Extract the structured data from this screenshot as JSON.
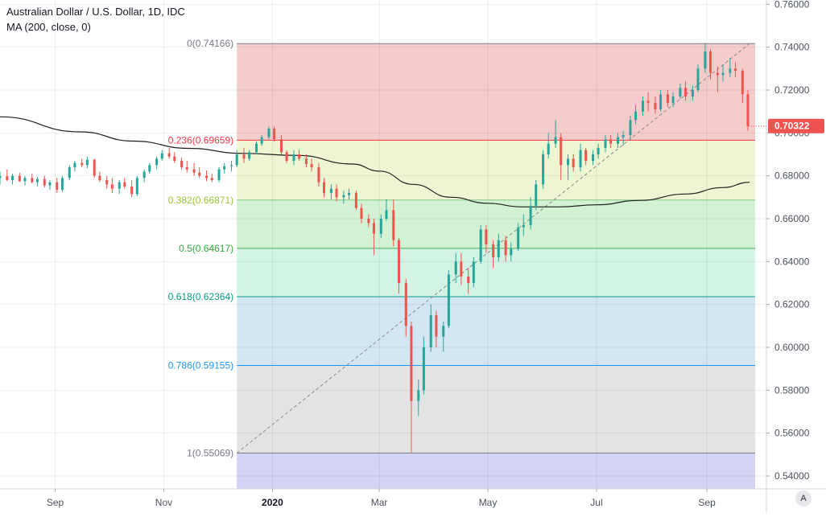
{
  "header": {
    "title": "Australian Dollar / U.S. Dollar, 1D, IDC",
    "indicator": "MA (200, close, 0)"
  },
  "auto_button": "A",
  "chart_data": {
    "type": "candlestick",
    "symbol": "AUDUSD",
    "ylim": [
      0.534,
      0.762
    ],
    "y_ticks": [
      "0.76000",
      "0.74000",
      "0.72000",
      "0.70000",
      "0.68000",
      "0.66000",
      "0.64000",
      "0.62000",
      "0.60000",
      "0.58000",
      "0.56000",
      "0.54000"
    ],
    "x_ticks": [
      "Sep",
      "Nov",
      "2020",
      "Mar",
      "May",
      "Jul",
      "Sep"
    ],
    "x_tick_months": [
      "2019-09-01",
      "2019-11-01",
      "2020-01-01",
      "2020-03-01",
      "2020-05-01",
      "2020-07-01",
      "2020-09-01"
    ],
    "x_range": [
      "2019-08-01",
      "2020-09-29"
    ],
    "last_price": "0.70322",
    "last_price_value": 0.70322,
    "up_color": "#26a69a",
    "down_color": "#ef5350",
    "fib_start_date": "2019-12-12",
    "fib_end_date": "2020-09-25",
    "fib_levels": [
      {
        "ratio": 0,
        "label": "0(0.74166)",
        "price": 0.74166,
        "line": "#787b86",
        "text": "#787b86",
        "fill": "#f5cccc"
      },
      {
        "ratio": 0.236,
        "label": "0.236(0.69659)",
        "price": 0.69659,
        "line": "#f23645",
        "text": "#f23645",
        "fill": "#eef5d2"
      },
      {
        "ratio": 0.382,
        "label": "0.382(0.66871)",
        "price": 0.66871,
        "line": "#81c784",
        "text": "#9bc235",
        "fill": "#d3f2d3"
      },
      {
        "ratio": 0.5,
        "label": "0.5(0.64617)",
        "price": 0.64617,
        "line": "#4caf50",
        "text": "#32a83c",
        "fill": "#d3f3e5"
      },
      {
        "ratio": 0.618,
        "label": "0.618(0.62364)",
        "price": 0.62364,
        "line": "#089981",
        "text": "#089981",
        "fill": "#d3e6f3"
      },
      {
        "ratio": 0.786,
        "label": "0.786(0.59155)",
        "price": 0.59155,
        "line": "#2196f3",
        "text": "#2196f3",
        "fill": "#e3e3e3"
      },
      {
        "ratio": 1,
        "label": "1(0.55069)",
        "price": 0.55069,
        "line": "#787b86",
        "text": "#787b86",
        "fill": "#d3d3f3"
      }
    ],
    "trend_line": {
      "from": [
        "2019-12-12",
        0.55069
      ],
      "to": [
        "2020-09-25",
        0.74166
      ]
    },
    "ma_label": "MA (200, close, 0)",
    "ma200": [
      [
        "2019-08-01",
        0.7075
      ],
      [
        "2019-09-15",
        0.7005
      ],
      [
        "2019-10-15",
        0.6962
      ],
      [
        "2019-11-15",
        0.6928
      ],
      [
        "2019-12-15",
        0.6905
      ],
      [
        "2020-01-15",
        0.6895
      ],
      [
        "2020-02-15",
        0.6855
      ],
      [
        "2020-03-01",
        0.6822
      ],
      [
        "2020-03-20",
        0.676
      ],
      [
        "2020-04-10",
        0.67
      ],
      [
        "2020-05-01",
        0.6672
      ],
      [
        "2020-05-20",
        0.6655
      ],
      [
        "2020-06-10",
        0.6655
      ],
      [
        "2020-07-01",
        0.6665
      ],
      [
        "2020-07-25",
        0.6685
      ],
      [
        "2020-08-20",
        0.6715
      ],
      [
        "2020-09-10",
        0.6745
      ],
      [
        "2020-09-25",
        0.677
      ]
    ],
    "candles": [
      [
        "2019-08-01",
        0.679,
        0.682,
        0.676,
        0.6798
      ],
      [
        "2019-08-05",
        0.6798,
        0.683,
        0.6775,
        0.678
      ],
      [
        "2019-08-08",
        0.678,
        0.681,
        0.676,
        0.68
      ],
      [
        "2019-08-12",
        0.68,
        0.6815,
        0.677,
        0.6775
      ],
      [
        "2019-08-15",
        0.6775,
        0.68,
        0.6755,
        0.679
      ],
      [
        "2019-08-19",
        0.679,
        0.681,
        0.6765,
        0.677
      ],
      [
        "2019-08-22",
        0.677,
        0.6795,
        0.675,
        0.6785
      ],
      [
        "2019-08-26",
        0.6785,
        0.68,
        0.6745,
        0.6755
      ],
      [
        "2019-08-29",
        0.6755,
        0.678,
        0.6735,
        0.677
      ],
      [
        "2019-09-02",
        0.677,
        0.679,
        0.672,
        0.6735
      ],
      [
        "2019-09-05",
        0.6735,
        0.68,
        0.6725,
        0.679
      ],
      [
        "2019-09-09",
        0.679,
        0.685,
        0.678,
        0.684
      ],
      [
        "2019-09-12",
        0.684,
        0.687,
        0.682,
        0.686
      ],
      [
        "2019-09-16",
        0.686,
        0.688,
        0.684,
        0.685
      ],
      [
        "2019-09-19",
        0.685,
        0.689,
        0.6835,
        0.6875
      ],
      [
        "2019-09-23",
        0.6875,
        0.688,
        0.679,
        0.68
      ],
      [
        "2019-09-26",
        0.68,
        0.682,
        0.677,
        0.678
      ],
      [
        "2019-09-30",
        0.678,
        0.68,
        0.674,
        0.676
      ],
      [
        "2019-10-03",
        0.676,
        0.679,
        0.672,
        0.674
      ],
      [
        "2019-10-07",
        0.674,
        0.678,
        0.6715,
        0.677
      ],
      [
        "2019-10-10",
        0.677,
        0.679,
        0.674,
        0.675
      ],
      [
        "2019-10-14",
        0.675,
        0.678,
        0.67,
        0.6715
      ],
      [
        "2019-10-17",
        0.6715,
        0.68,
        0.6705,
        0.679
      ],
      [
        "2019-10-21",
        0.679,
        0.683,
        0.677,
        0.682
      ],
      [
        "2019-10-24",
        0.682,
        0.686,
        0.681,
        0.685
      ],
      [
        "2019-10-28",
        0.685,
        0.689,
        0.683,
        0.688
      ],
      [
        "2019-10-31",
        0.688,
        0.692,
        0.687,
        0.6905
      ],
      [
        "2019-11-04",
        0.6905,
        0.693,
        0.688,
        0.689
      ],
      [
        "2019-11-07",
        0.689,
        0.691,
        0.686,
        0.687
      ],
      [
        "2019-11-11",
        0.687,
        0.6885,
        0.683,
        0.684
      ],
      [
        "2019-11-14",
        0.684,
        0.687,
        0.6815,
        0.683
      ],
      [
        "2019-11-18",
        0.683,
        0.686,
        0.68,
        0.6815
      ],
      [
        "2019-11-21",
        0.6815,
        0.684,
        0.679,
        0.68
      ],
      [
        "2019-11-25",
        0.68,
        0.6825,
        0.6775,
        0.679
      ],
      [
        "2019-11-28",
        0.679,
        0.681,
        0.677,
        0.678
      ],
      [
        "2019-12-02",
        0.678,
        0.684,
        0.677,
        0.683
      ],
      [
        "2019-12-05",
        0.683,
        0.686,
        0.681,
        0.6845
      ],
      [
        "2019-12-09",
        0.6845,
        0.687,
        0.682,
        0.685
      ],
      [
        "2019-12-12",
        0.685,
        0.692,
        0.684,
        0.69
      ],
      [
        "2019-12-16",
        0.69,
        0.693,
        0.686,
        0.688
      ],
      [
        "2019-12-19",
        0.688,
        0.692,
        0.687,
        0.691
      ],
      [
        "2019-12-23",
        0.691,
        0.696,
        0.69,
        0.695
      ],
      [
        "2019-12-26",
        0.695,
        0.699,
        0.694,
        0.698
      ],
      [
        "2019-12-30",
        0.698,
        0.703,
        0.697,
        0.702
      ],
      [
        "2020-01-02",
        0.702,
        0.703,
        0.696,
        0.697
      ],
      [
        "2020-01-06",
        0.697,
        0.699,
        0.69,
        0.691
      ],
      [
        "2020-01-09",
        0.691,
        0.692,
        0.686,
        0.687
      ],
      [
        "2020-01-13",
        0.687,
        0.692,
        0.685,
        0.69
      ],
      [
        "2020-01-16",
        0.69,
        0.692,
        0.687,
        0.688
      ],
      [
        "2020-01-20",
        0.688,
        0.69,
        0.684,
        0.6855
      ],
      [
        "2020-01-23",
        0.6855,
        0.688,
        0.682,
        0.684
      ],
      [
        "2020-01-27",
        0.684,
        0.686,
        0.675,
        0.677
      ],
      [
        "2020-01-30",
        0.677,
        0.679,
        0.67,
        0.672
      ],
      [
        "2020-02-03",
        0.672,
        0.676,
        0.669,
        0.674
      ],
      [
        "2020-02-06",
        0.674,
        0.676,
        0.668,
        0.67
      ],
      [
        "2020-02-10",
        0.67,
        0.673,
        0.667,
        0.671
      ],
      [
        "2020-02-13",
        0.671,
        0.674,
        0.669,
        0.672
      ],
      [
        "2020-02-17",
        0.672,
        0.673,
        0.664,
        0.665
      ],
      [
        "2020-02-20",
        0.665,
        0.667,
        0.658,
        0.66
      ],
      [
        "2020-02-24",
        0.66,
        0.662,
        0.656,
        0.658
      ],
      [
        "2020-02-27",
        0.658,
        0.66,
        0.643,
        0.653
      ],
      [
        "2020-03-02",
        0.653,
        0.662,
        0.651,
        0.66
      ],
      [
        "2020-03-05",
        0.66,
        0.669,
        0.659,
        0.664
      ],
      [
        "2020-03-09",
        0.664,
        0.669,
        0.647,
        0.65
      ],
      [
        "2020-03-12",
        0.65,
        0.651,
        0.625,
        0.63
      ],
      [
        "2020-03-16",
        0.63,
        0.632,
        0.605,
        0.61
      ],
      [
        "2020-03-19",
        0.61,
        0.612,
        0.5507,
        0.575
      ],
      [
        "2020-03-23",
        0.575,
        0.585,
        0.568,
        0.58
      ],
      [
        "2020-03-26",
        0.58,
        0.605,
        0.578,
        0.6
      ],
      [
        "2020-03-30",
        0.6,
        0.62,
        0.598,
        0.615
      ],
      [
        "2020-04-02",
        0.615,
        0.617,
        0.6,
        0.605
      ],
      [
        "2020-04-06",
        0.605,
        0.612,
        0.598,
        0.61
      ],
      [
        "2020-04-09",
        0.61,
        0.636,
        0.609,
        0.634
      ],
      [
        "2020-04-13",
        0.634,
        0.644,
        0.63,
        0.64
      ],
      [
        "2020-04-16",
        0.64,
        0.644,
        0.629,
        0.633
      ],
      [
        "2020-04-20",
        0.633,
        0.637,
        0.625,
        0.63
      ],
      [
        "2020-04-23",
        0.63,
        0.642,
        0.628,
        0.64
      ],
      [
        "2020-04-27",
        0.64,
        0.657,
        0.639,
        0.655
      ],
      [
        "2020-04-30",
        0.655,
        0.657,
        0.644,
        0.648
      ],
      [
        "2020-05-04",
        0.648,
        0.65,
        0.637,
        0.642
      ],
      [
        "2020-05-07",
        0.642,
        0.653,
        0.64,
        0.65
      ],
      [
        "2020-05-11",
        0.65,
        0.652,
        0.64,
        0.643
      ],
      [
        "2020-05-14",
        0.643,
        0.649,
        0.64,
        0.646
      ],
      [
        "2020-05-18",
        0.646,
        0.658,
        0.645,
        0.656
      ],
      [
        "2020-05-21",
        0.656,
        0.662,
        0.652,
        0.657
      ],
      [
        "2020-05-25",
        0.657,
        0.67,
        0.655,
        0.666
      ],
      [
        "2020-05-28",
        0.666,
        0.678,
        0.664,
        0.676
      ],
      [
        "2020-06-01",
        0.676,
        0.692,
        0.674,
        0.69
      ],
      [
        "2020-06-04",
        0.69,
        0.7,
        0.688,
        0.695
      ],
      [
        "2020-06-08",
        0.695,
        0.706,
        0.693,
        0.698
      ],
      [
        "2020-06-11",
        0.698,
        0.7,
        0.678,
        0.685
      ],
      [
        "2020-06-15",
        0.685,
        0.69,
        0.678,
        0.688
      ],
      [
        "2020-06-18",
        0.688,
        0.69,
        0.682,
        0.684
      ],
      [
        "2020-06-22",
        0.684,
        0.695,
        0.682,
        0.692
      ],
      [
        "2020-06-25",
        0.692,
        0.693,
        0.685,
        0.687
      ],
      [
        "2020-06-29",
        0.687,
        0.692,
        0.685,
        0.69
      ],
      [
        "2020-07-02",
        0.69,
        0.695,
        0.688,
        0.693
      ],
      [
        "2020-07-06",
        0.693,
        0.699,
        0.691,
        0.697
      ],
      [
        "2020-07-09",
        0.697,
        0.699,
        0.693,
        0.695
      ],
      [
        "2020-07-13",
        0.695,
        0.7,
        0.693,
        0.698
      ],
      [
        "2020-07-16",
        0.698,
        0.701,
        0.694,
        0.699
      ],
      [
        "2020-07-20",
        0.699,
        0.708,
        0.697,
        0.706
      ],
      [
        "2020-07-23",
        0.706,
        0.713,
        0.704,
        0.71
      ],
      [
        "2020-07-27",
        0.71,
        0.717,
        0.708,
        0.715
      ],
      [
        "2020-07-30",
        0.715,
        0.719,
        0.71,
        0.714
      ],
      [
        "2020-08-03",
        0.714,
        0.717,
        0.709,
        0.711
      ],
      [
        "2020-08-06",
        0.711,
        0.72,
        0.71,
        0.718
      ],
      [
        "2020-08-10",
        0.718,
        0.72,
        0.712,
        0.714
      ],
      [
        "2020-08-13",
        0.714,
        0.719,
        0.712,
        0.717
      ],
      [
        "2020-08-17",
        0.717,
        0.723,
        0.716,
        0.721
      ],
      [
        "2020-08-20",
        0.721,
        0.724,
        0.715,
        0.717
      ],
      [
        "2020-08-24",
        0.717,
        0.722,
        0.715,
        0.72
      ],
      [
        "2020-08-27",
        0.72,
        0.732,
        0.719,
        0.73
      ],
      [
        "2020-08-31",
        0.73,
        0.7416,
        0.728,
        0.738
      ],
      [
        "2020-09-03",
        0.738,
        0.739,
        0.725,
        0.728
      ],
      [
        "2020-09-07",
        0.728,
        0.731,
        0.719,
        0.727
      ],
      [
        "2020-09-10",
        0.727,
        0.732,
        0.724,
        0.728
      ],
      [
        "2020-09-14",
        0.728,
        0.735,
        0.726,
        0.73
      ],
      [
        "2020-09-17",
        0.73,
        0.733,
        0.726,
        0.729
      ],
      [
        "2020-09-21",
        0.729,
        0.73,
        0.714,
        0.718
      ],
      [
        "2020-09-24",
        0.718,
        0.72,
        0.701,
        0.7032
      ]
    ]
  }
}
